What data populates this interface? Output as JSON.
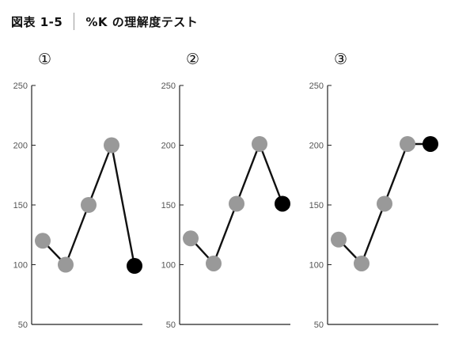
{
  "header": {
    "figure_number": "図表 1-5",
    "title": "%K の理解度テスト"
  },
  "chart_data": [
    {
      "type": "line",
      "panel_label": "①",
      "x": [
        1,
        2,
        3,
        4,
        5
      ],
      "series": [
        {
          "values": [
            120,
            100,
            150,
            200,
            99
          ]
        }
      ],
      "point_colors": [
        "#999999",
        "#999999",
        "#999999",
        "#999999",
        "#000000"
      ],
      "ylim": [
        50,
        250
      ],
      "yticks": [
        "250",
        "200",
        "150",
        "100",
        "50"
      ]
    },
    {
      "type": "line",
      "panel_label": "②",
      "x": [
        1,
        2,
        3,
        4,
        5
      ],
      "series": [
        {
          "values": [
            122,
            101,
            151,
            201,
            151
          ]
        }
      ],
      "point_colors": [
        "#999999",
        "#999999",
        "#999999",
        "#999999",
        "#000000"
      ],
      "ylim": [
        50,
        250
      ],
      "yticks": [
        "250",
        "200",
        "150",
        "100",
        "50"
      ]
    },
    {
      "type": "line",
      "panel_label": "③",
      "x": [
        1,
        2,
        3,
        4,
        5
      ],
      "series": [
        {
          "values": [
            121,
            101,
            151,
            201,
            201
          ]
        }
      ],
      "point_colors": [
        "#999999",
        "#999999",
        "#999999",
        "#999999",
        "#000000"
      ],
      "ylim": [
        50,
        250
      ],
      "yticks": [
        "250",
        "200",
        "150",
        "100",
        "50"
      ]
    }
  ],
  "colors": {
    "axis": "#222222",
    "line": "#111111",
    "marker": "#999999",
    "last_marker": "#000000",
    "separator": "#9a9a9a"
  }
}
